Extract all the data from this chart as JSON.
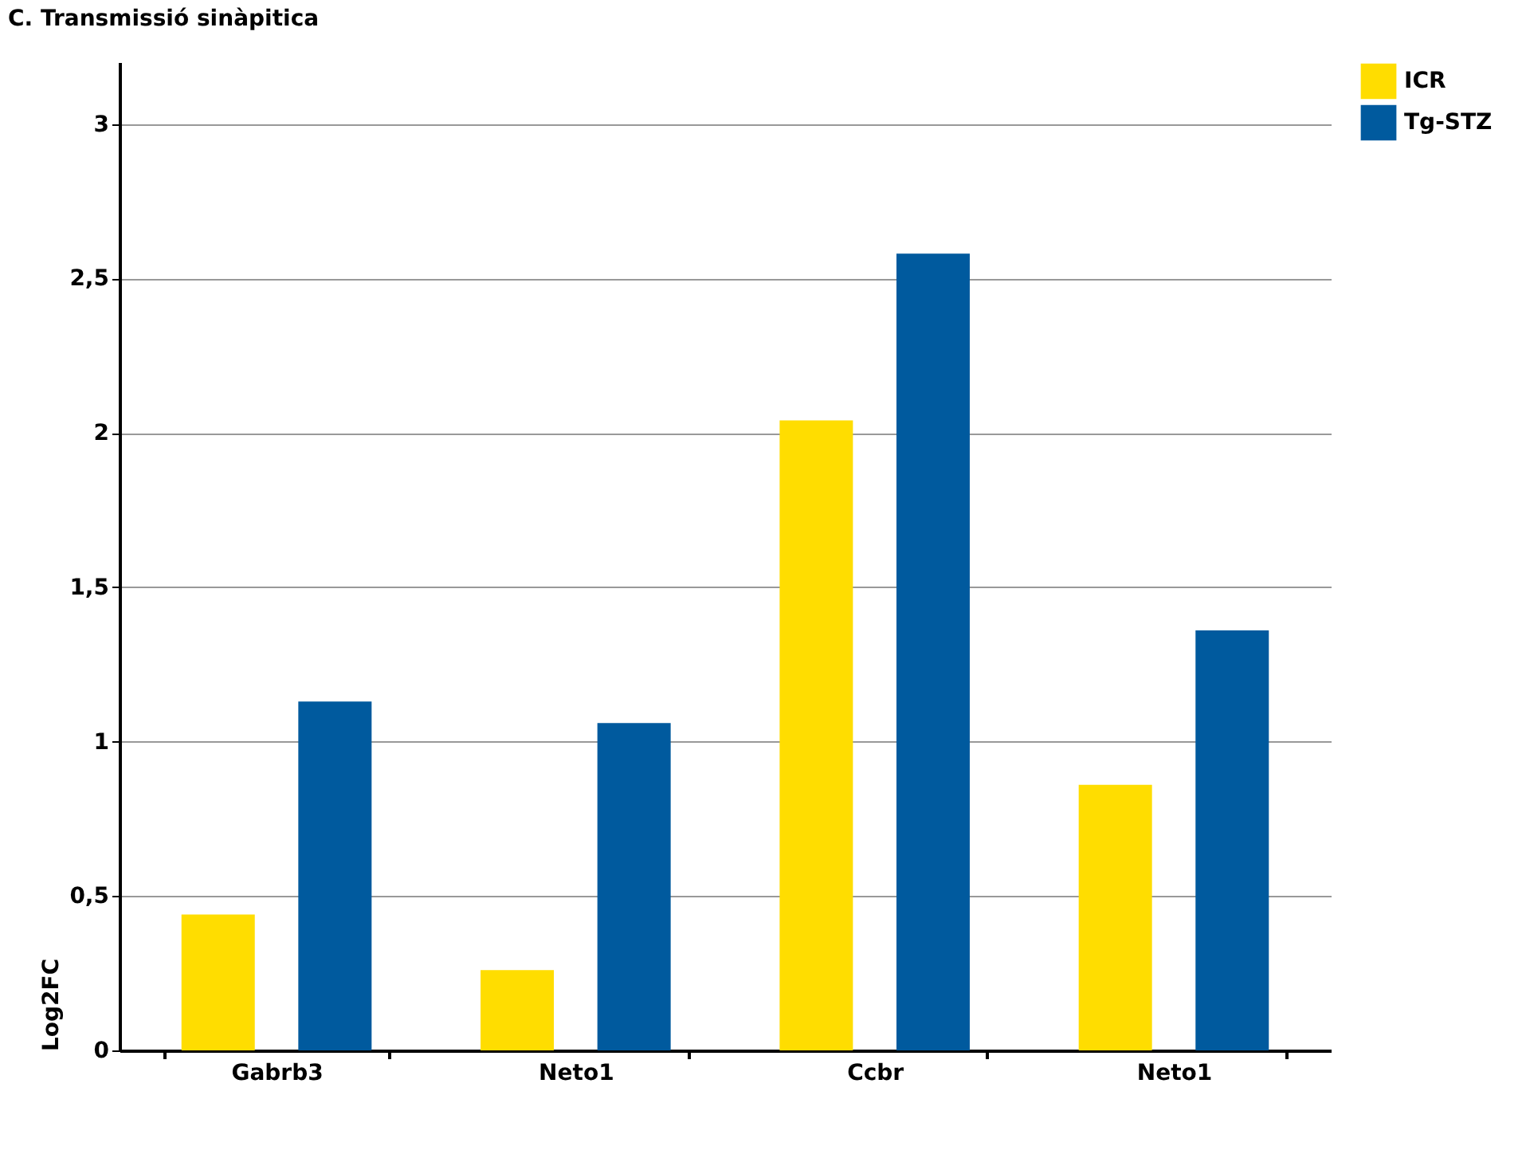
{
  "chart_data": {
    "type": "bar",
    "title": "C. Transmissió sinàpitica",
    "ylabel": "Log2FC",
    "categories": [
      "Gabrb3",
      "Neto1",
      "Ccbr",
      "Neto1"
    ],
    "series": [
      {
        "name": "ICR",
        "color": "#ffdd00",
        "values": [
          0.44,
          0.26,
          2.04,
          0.86
        ]
      },
      {
        "name": "Tg-STZ",
        "color": "#005a9e",
        "values": [
          1.13,
          1.06,
          2.58,
          1.36
        ]
      }
    ],
    "ylim": [
      0,
      3.2
    ],
    "yticks": [
      0,
      {
        "value": 0.5,
        "label": "0,5"
      },
      1,
      {
        "value": 1.5,
        "label": "1,5"
      },
      2,
      {
        "value": 2.5,
        "label": "2,5"
      },
      3
    ],
    "grid": "y",
    "legend": "top right"
  }
}
